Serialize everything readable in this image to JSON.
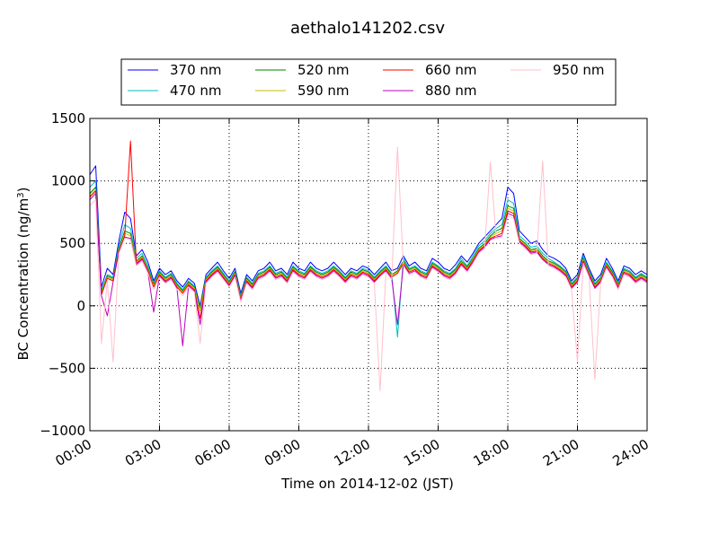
{
  "chart_data": {
    "type": "line",
    "title": "aethalo141202.csv",
    "xlabel": "Time on 2014-12-02 (JST)",
    "ylabel": "BC Concentration (ng/m",
    "ylabel_sup": "3",
    "ylabel_suffix": ")",
    "xlim": [
      0,
      24
    ],
    "ylim": [
      -1000,
      1500
    ],
    "x_ticks": [
      0,
      3,
      6,
      9,
      12,
      15,
      18,
      21,
      24
    ],
    "x_tick_labels": [
      "00:00",
      "03:00",
      "06:00",
      "09:00",
      "12:00",
      "15:00",
      "18:00",
      "21:00",
      "24:00"
    ],
    "y_ticks": [
      -1000,
      -500,
      0,
      500,
      1000,
      1500
    ],
    "y_tick_labels": [
      "−1000",
      "−500",
      "0",
      "500",
      "1000",
      "1500"
    ],
    "grid": true,
    "legend_position": "top-center",
    "x": [
      0.0,
      0.25,
      0.5,
      0.75,
      1.0,
      1.25,
      1.5,
      1.75,
      2.0,
      2.25,
      2.5,
      2.75,
      3.0,
      3.25,
      3.5,
      3.75,
      4.0,
      4.25,
      4.5,
      4.75,
      5.0,
      5.25,
      5.5,
      5.75,
      6.0,
      6.25,
      6.5,
      6.75,
      7.0,
      7.25,
      7.5,
      7.75,
      8.0,
      8.25,
      8.5,
      8.75,
      9.0,
      9.25,
      9.5,
      9.75,
      10.0,
      10.25,
      10.5,
      10.75,
      11.0,
      11.25,
      11.5,
      11.75,
      12.0,
      12.25,
      12.5,
      12.75,
      13.0,
      13.25,
      13.5,
      13.75,
      14.0,
      14.25,
      14.5,
      14.75,
      15.0,
      15.25,
      15.5,
      15.75,
      16.0,
      16.25,
      16.5,
      16.75,
      17.0,
      17.25,
      17.5,
      17.75,
      18.0,
      18.25,
      18.5,
      18.75,
      19.0,
      19.25,
      19.5,
      19.75,
      20.0,
      20.25,
      20.5,
      20.75,
      21.0,
      21.25,
      21.5,
      21.75,
      22.0,
      22.25,
      22.5,
      22.75,
      23.0,
      23.25,
      23.5,
      23.75,
      24.0
    ],
    "series": [
      {
        "name": "370 nm",
        "color": "#0000ff",
        "values": [
          1050,
          1120,
          150,
          300,
          250,
          520,
          750,
          700,
          400,
          450,
          350,
          200,
          300,
          250,
          280,
          200,
          150,
          220,
          180,
          0,
          250,
          300,
          350,
          280,
          220,
          300,
          100,
          250,
          200,
          280,
          300,
          350,
          280,
          300,
          250,
          350,
          300,
          280,
          350,
          300,
          280,
          300,
          350,
          300,
          250,
          300,
          280,
          320,
          300,
          250,
          300,
          350,
          280,
          300,
          400,
          320,
          350,
          300,
          280,
          380,
          350,
          300,
          280,
          330,
          400,
          350,
          420,
          500,
          550,
          600,
          650,
          700,
          950,
          900,
          600,
          550,
          500,
          520,
          450,
          400,
          380,
          350,
          300,
          200,
          250,
          420,
          300,
          200,
          250,
          380,
          300,
          200,
          320,
          300,
          250,
          280,
          250
        ]
      },
      {
        "name": "470 nm",
        "color": "#00bfbf",
        "values": [
          950,
          1000,
          120,
          250,
          230,
          480,
          650,
          620,
          380,
          420,
          320,
          180,
          280,
          230,
          260,
          180,
          130,
          200,
          160,
          -20,
          230,
          280,
          320,
          260,
          200,
          280,
          80,
          230,
          180,
          260,
          280,
          320,
          260,
          280,
          230,
          320,
          280,
          260,
          320,
          280,
          260,
          280,
          320,
          280,
          230,
          280,
          260,
          300,
          280,
          230,
          280,
          320,
          260,
          -250,
          380,
          300,
          320,
          280,
          260,
          350,
          320,
          280,
          260,
          300,
          380,
          320,
          400,
          480,
          520,
          580,
          620,
          650,
          850,
          820,
          560,
          520,
          470,
          480,
          420,
          380,
          350,
          320,
          280,
          180,
          230,
          400,
          280,
          180,
          230,
          350,
          280,
          180,
          300,
          280,
          230,
          260,
          230
        ]
      },
      {
        "name": "520 nm",
        "color": "#008000",
        "values": [
          900,
          950,
          110,
          240,
          220,
          460,
          600,
          580,
          360,
          400,
          300,
          170,
          270,
          220,
          250,
          170,
          120,
          190,
          150,
          -30,
          220,
          270,
          310,
          250,
          190,
          270,
          70,
          220,
          170,
          250,
          270,
          310,
          250,
          270,
          220,
          310,
          270,
          250,
          310,
          270,
          250,
          270,
          310,
          270,
          220,
          270,
          250,
          290,
          270,
          220,
          270,
          310,
          250,
          280,
          360,
          290,
          310,
          270,
          250,
          340,
          310,
          270,
          250,
          290,
          360,
          310,
          380,
          460,
          500,
          560,
          600,
          620,
          800,
          780,
          540,
          500,
          450,
          460,
          400,
          360,
          340,
          310,
          270,
          170,
          220,
          380,
          270,
          170,
          220,
          340,
          270,
          170,
          290,
          270,
          220,
          250,
          220
        ]
      },
      {
        "name": "590 nm",
        "color": "#bfbf00",
        "values": [
          880,
          930,
          100,
          230,
          210,
          450,
          580,
          560,
          350,
          390,
          290,
          160,
          260,
          210,
          240,
          160,
          110,
          180,
          140,
          -40,
          210,
          260,
          300,
          240,
          180,
          260,
          60,
          210,
          160,
          240,
          260,
          300,
          240,
          260,
          210,
          300,
          260,
          240,
          300,
          260,
          240,
          260,
          300,
          260,
          210,
          260,
          240,
          280,
          260,
          210,
          260,
          300,
          240,
          270,
          350,
          280,
          300,
          260,
          240,
          330,
          300,
          260,
          240,
          280,
          350,
          300,
          370,
          450,
          490,
          550,
          580,
          600,
          780,
          760,
          530,
          490,
          440,
          450,
          390,
          350,
          330,
          300,
          260,
          160,
          210,
          370,
          260,
          160,
          210,
          330,
          260,
          160,
          280,
          260,
          210,
          240,
          210
        ]
      },
      {
        "name": "660 nm",
        "color": "#ff0000",
        "values": [
          870,
          920,
          90,
          220,
          200,
          440,
          560,
          1320,
          340,
          380,
          280,
          150,
          250,
          200,
          230,
          150,
          100,
          170,
          130,
          -100,
          200,
          250,
          290,
          230,
          170,
          250,
          50,
          200,
          150,
          230,
          250,
          290,
          230,
          250,
          200,
          290,
          250,
          230,
          290,
          250,
          230,
          250,
          290,
          250,
          200,
          250,
          230,
          270,
          250,
          200,
          250,
          290,
          230,
          260,
          340,
          270,
          290,
          250,
          230,
          320,
          290,
          250,
          230,
          270,
          340,
          290,
          360,
          440,
          480,
          540,
          560,
          580,
          760,
          740,
          520,
          480,
          430,
          440,
          380,
          340,
          320,
          290,
          250,
          150,
          200,
          360,
          250,
          150,
          200,
          320,
          250,
          150,
          270,
          250,
          200,
          230,
          200
        ]
      },
      {
        "name": "880 nm",
        "color": "#bf00bf",
        "values": [
          850,
          900,
          80,
          -80,
          190,
          430,
          550,
          540,
          330,
          370,
          270,
          -50,
          240,
          190,
          220,
          140,
          -320,
          160,
          120,
          -150,
          190,
          240,
          280,
          220,
          160,
          240,
          40,
          190,
          140,
          220,
          240,
          280,
          220,
          240,
          190,
          280,
          240,
          220,
          280,
          240,
          220,
          240,
          280,
          240,
          190,
          240,
          220,
          260,
          240,
          190,
          240,
          280,
          220,
          -150,
          330,
          260,
          280,
          240,
          220,
          310,
          280,
          240,
          220,
          260,
          330,
          280,
          350,
          430,
          470,
          530,
          550,
          560,
          740,
          720,
          510,
          470,
          420,
          430,
          370,
          330,
          310,
          280,
          240,
          140,
          190,
          350,
          240,
          140,
          190,
          310,
          240,
          140,
          260,
          240,
          190,
          220,
          190
        ]
      },
      {
        "name": "950 nm",
        "color": "#ffc0cb",
        "values": [
          800,
          850,
          -300,
          200,
          -450,
          420,
          540,
          530,
          320,
          360,
          260,
          130,
          230,
          180,
          210,
          130,
          80,
          150,
          110,
          -300,
          180,
          230,
          270,
          210,
          150,
          230,
          30,
          180,
          130,
          210,
          230,
          270,
          210,
          230,
          180,
          270,
          230,
          210,
          270,
          230,
          210,
          230,
          270,
          230,
          180,
          230,
          210,
          250,
          230,
          180,
          -680,
          270,
          210,
          1270,
          320,
          250,
          270,
          230,
          210,
          300,
          270,
          230,
          210,
          250,
          320,
          270,
          340,
          420,
          460,
          1150,
          540,
          550,
          720,
          700,
          500,
          460,
          410,
          420,
          1160,
          320,
          300,
          270,
          230,
          130,
          -450,
          340,
          230,
          -590,
          180,
          300,
          230,
          130,
          250,
          230,
          180,
          210,
          180
        ]
      }
    ]
  }
}
